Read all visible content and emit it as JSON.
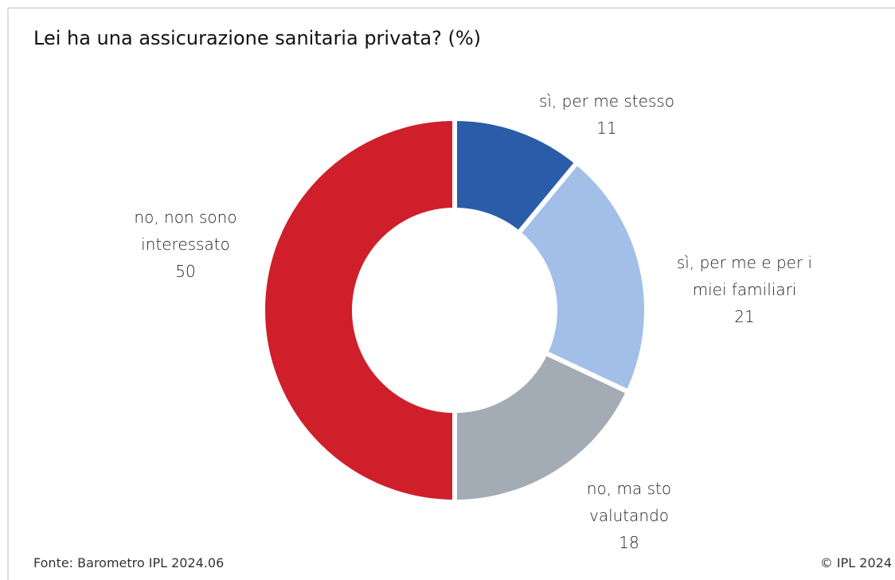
{
  "chart_data": {
    "type": "donut",
    "title": "Lei ha una assicurazione sanitaria privata? (%)",
    "categories": [
      "sì, per me stesso",
      "sì, per me e per i miei familiari",
      "no, ma sto valutando",
      "no, non sono interessato"
    ],
    "values": [
      11,
      21,
      18,
      50
    ],
    "colors": [
      "#2a5caa",
      "#a2bfe8",
      "#a3abb5",
      "#cf1f2a"
    ],
    "source": "Fonte: Barometro IPL  2024.06",
    "copyright": "© IPL 2024"
  }
}
